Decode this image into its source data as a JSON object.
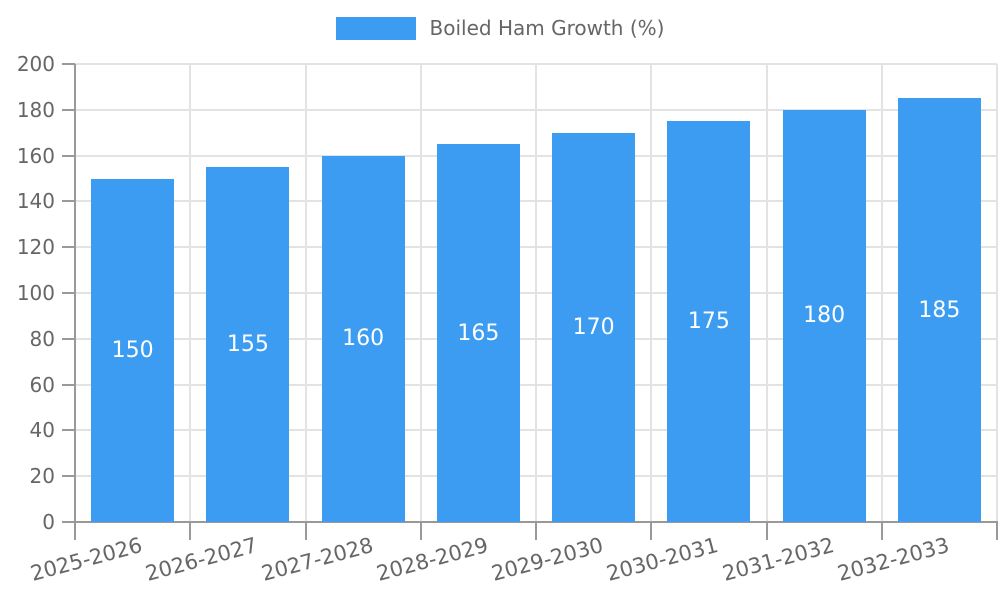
{
  "chart_data": {
    "type": "bar",
    "legend": {
      "label": "Boiled Ham Growth (%)",
      "position": "top"
    },
    "categories": [
      "2025-2026",
      "2026-2027",
      "2027-2028",
      "2028-2029",
      "2029-2030",
      "2030-2031",
      "2031-2032",
      "2032-2033"
    ],
    "values": [
      150,
      155,
      160,
      165,
      170,
      175,
      180,
      185
    ],
    "bar_value_labels": [
      "150",
      "155",
      "160",
      "165",
      "170",
      "175",
      "180",
      "185"
    ],
    "ylim": [
      0,
      200
    ],
    "yticks": [
      0,
      20,
      40,
      60,
      80,
      100,
      120,
      140,
      160,
      180,
      200
    ],
    "grid": true,
    "bar_labels_visible": true,
    "x_label_rotation_deg": -15
  },
  "colors": {
    "bar": "#3b9cf2",
    "grid": "#e3e3e3",
    "axis": "#999999",
    "text": "#666666",
    "bar_label": "#ffffff",
    "background": "#ffffff"
  }
}
